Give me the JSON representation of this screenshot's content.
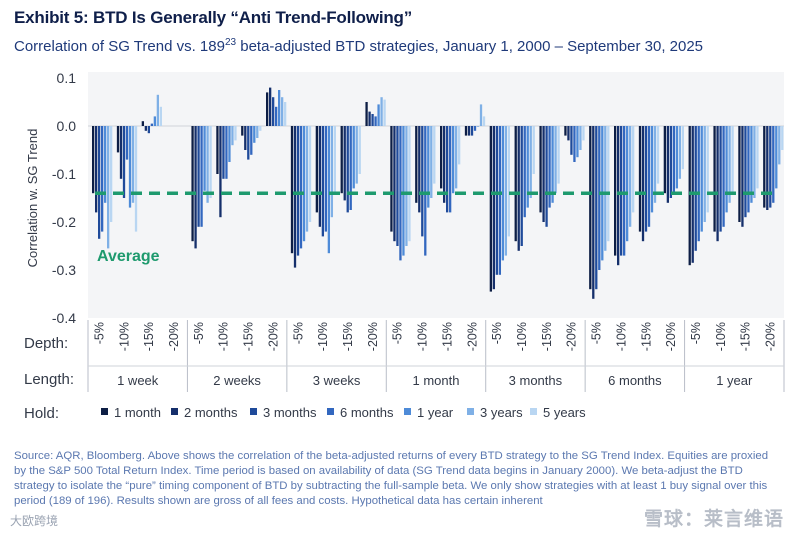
{
  "header": {
    "title": "Exhibit 5: BTD Is Generally “Anti Trend-Following”",
    "subtitle_pre": "Correlation of SG Trend vs. 189",
    "subtitle_sup": "23",
    "subtitle_post": " beta-adjusted BTD strategies, January 1, 2000 – September 30, 2025"
  },
  "footer": {
    "source": "Source: AQR, Bloomberg. Above shows the correlation of the beta-adjusted returns of every BTD strategy to the SG Trend Index. Equities are proxied by the S&P 500 Total Return Index. Time period is based on availability of data (SG Trend data begins in January 2000). We beta-adjust the BTD strategy to isolate the “pure” timing component of BTD by subtracting the full-sample beta. We only show strategies with at least 1 buy signal over this period (189 of 196). Results shown are gross of all fees and costs. Hypothetical data has certain inherent",
    "watermark_left": "大欧跨境",
    "watermark_right": "雪球：莱言维语"
  },
  "chart_data": {
    "type": "bar",
    "ylabel": "Correlation w. SG Trend",
    "ylim": [
      -0.4,
      0.1
    ],
    "yticks": [
      0.1,
      0.0,
      -0.1,
      -0.2,
      -0.3,
      -0.4
    ],
    "ytick_labels": [
      "0.1",
      "0.0",
      "-0.1",
      "-0.2",
      "-0.3",
      "-0.4"
    ],
    "average": -0.14,
    "average_label": "Average",
    "row_labels": {
      "depth": "Depth:",
      "length": "Length:",
      "hold": "Hold:"
    },
    "depths": [
      "-5%",
      "-10%",
      "-15%",
      "-20%"
    ],
    "lengths": [
      "1 week",
      "2 weeks",
      "3 weeks",
      "1 month",
      "3 months",
      "6 months",
      "1 year"
    ],
    "holds": [
      "1 month",
      "2 months",
      "3 months",
      "6 months",
      "1 year",
      "3 years",
      "5 years"
    ],
    "hold_colors": [
      "#0d1e45",
      "#152f6b",
      "#1f4a9a",
      "#3267bf",
      "#4e8bd8",
      "#7fb0e6",
      "#b9d6f2"
    ],
    "values": [
      [
        [
          -0.14,
          -0.18,
          -0.235,
          -0.22,
          -0.16,
          -0.255,
          -0.2
        ],
        [
          -0.055,
          -0.11,
          -0.15,
          -0.07,
          -0.17,
          -0.16,
          -0.22
        ],
        [
          0.01,
          -0.01,
          -0.015,
          0.005,
          0.02,
          0.065,
          0.04
        ],
        [
          null,
          null,
          null,
          null,
          null,
          null,
          null
        ]
      ],
      [
        [
          -0.24,
          -0.255,
          -0.21,
          -0.21,
          -0.135,
          -0.16,
          -0.15
        ],
        [
          -0.1,
          -0.19,
          -0.11,
          -0.11,
          -0.075,
          -0.04,
          -0.03
        ],
        [
          -0.02,
          -0.05,
          -0.07,
          -0.06,
          -0.035,
          -0.025,
          -0.01
        ],
        [
          0.07,
          0.08,
          0.06,
          0.04,
          0.075,
          0.06,
          0.05
        ]
      ],
      [
        [
          -0.265,
          -0.295,
          -0.27,
          -0.255,
          -0.24,
          -0.22,
          -0.2
        ],
        [
          -0.18,
          -0.21,
          -0.23,
          -0.22,
          -0.265,
          -0.19,
          -0.14
        ],
        [
          -0.14,
          -0.155,
          -0.18,
          -0.175,
          -0.13,
          -0.12,
          -0.1
        ],
        [
          0.05,
          0.03,
          0.025,
          0.02,
          0.045,
          0.06,
          0.055
        ]
      ],
      [
        [
          -0.22,
          -0.24,
          -0.25,
          -0.28,
          -0.27,
          -0.25,
          -0.24
        ],
        [
          -0.16,
          -0.18,
          -0.23,
          -0.27,
          -0.17,
          -0.15,
          -0.12
        ],
        [
          -0.13,
          -0.16,
          -0.18,
          -0.18,
          -0.14,
          -0.13,
          -0.08
        ],
        [
          -0.02,
          -0.02,
          -0.02,
          -0.01,
          0.0,
          0.045,
          0.02
        ]
      ],
      [
        [
          -0.345,
          -0.34,
          -0.31,
          -0.31,
          -0.28,
          -0.27,
          -0.23
        ],
        [
          -0.24,
          -0.26,
          -0.25,
          -0.19,
          -0.17,
          -0.15,
          -0.1
        ],
        [
          -0.18,
          -0.2,
          -0.21,
          -0.17,
          -0.16,
          -0.14,
          -0.12
        ],
        [
          -0.02,
          -0.03,
          -0.06,
          -0.075,
          -0.065,
          -0.05,
          -0.03
        ]
      ],
      [
        [
          -0.34,
          -0.36,
          -0.34,
          -0.3,
          -0.28,
          -0.26,
          -0.24
        ],
        [
          -0.27,
          -0.29,
          -0.27,
          -0.27,
          -0.24,
          -0.21,
          -0.18
        ],
        [
          -0.22,
          -0.24,
          -0.22,
          -0.21,
          -0.18,
          -0.16,
          -0.12
        ],
        [
          -0.14,
          -0.16,
          -0.15,
          -0.14,
          -0.13,
          -0.11,
          -0.09
        ]
      ],
      [
        [
          -0.29,
          -0.285,
          -0.26,
          -0.24,
          -0.22,
          -0.2,
          -0.18
        ],
        [
          -0.22,
          -0.24,
          -0.22,
          -0.21,
          -0.18,
          -0.16,
          -0.14
        ],
        [
          -0.2,
          -0.21,
          -0.19,
          -0.18,
          -0.16,
          -0.15,
          -0.13
        ],
        [
          -0.17,
          -0.175,
          -0.17,
          -0.16,
          -0.13,
          -0.08,
          -0.05
        ]
      ]
    ]
  }
}
